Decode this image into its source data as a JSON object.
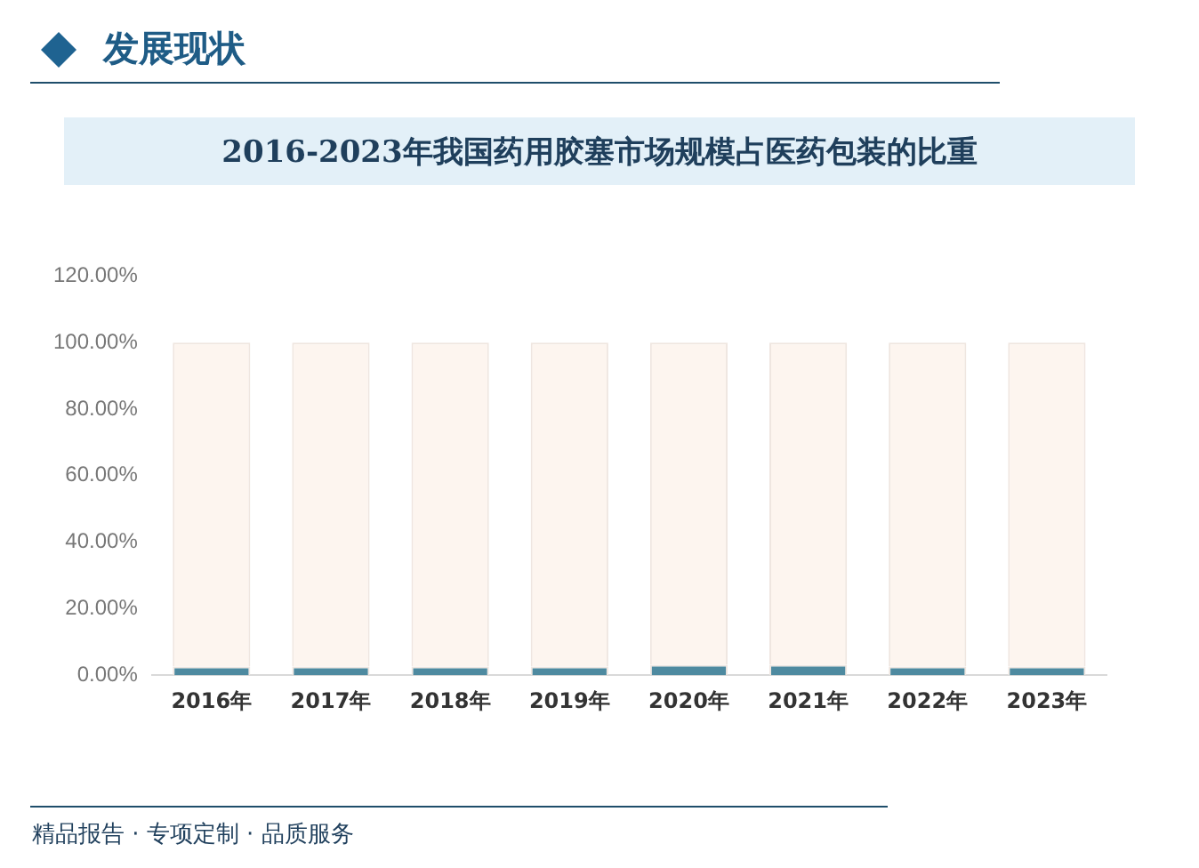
{
  "chart_data": {
    "type": "bar",
    "title": "2016-2023年我国药用胶塞市场规模占医药包装的比重",
    "annotations": [
      "发展现状",
      "精品报告 · 专项定制 · 品质服务"
    ],
    "categories": [
      "2016年",
      "2017年",
      "2018年",
      "2019年",
      "2020年",
      "2021年",
      "2022年",
      "2023年"
    ],
    "stacked": true,
    "series": [
      {
        "color": "#4e8aa0",
        "values": [
          2.6,
          2.6,
          2.6,
          2.6,
          3.1,
          3.1,
          2.6,
          2.6
        ]
      },
      {
        "color": "#fdf5ef",
        "values": [
          97.4,
          97.4,
          97.4,
          97.4,
          96.9,
          96.9,
          97.4,
          97.4
        ]
      }
    ],
    "ylim": [
      0,
      120
    ],
    "yticks": [
      {
        "value": 0,
        "label": "0.00%"
      },
      {
        "value": 20,
        "label": "20.00%"
      },
      {
        "value": 40,
        "label": "40.00%"
      },
      {
        "value": 60,
        "label": "60.00%"
      },
      {
        "value": 80,
        "label": "80.00%"
      },
      {
        "value": 100,
        "label": "100.00%"
      },
      {
        "value": 120,
        "label": "120.00%"
      }
    ],
    "grid": false,
    "legend": false
  }
}
